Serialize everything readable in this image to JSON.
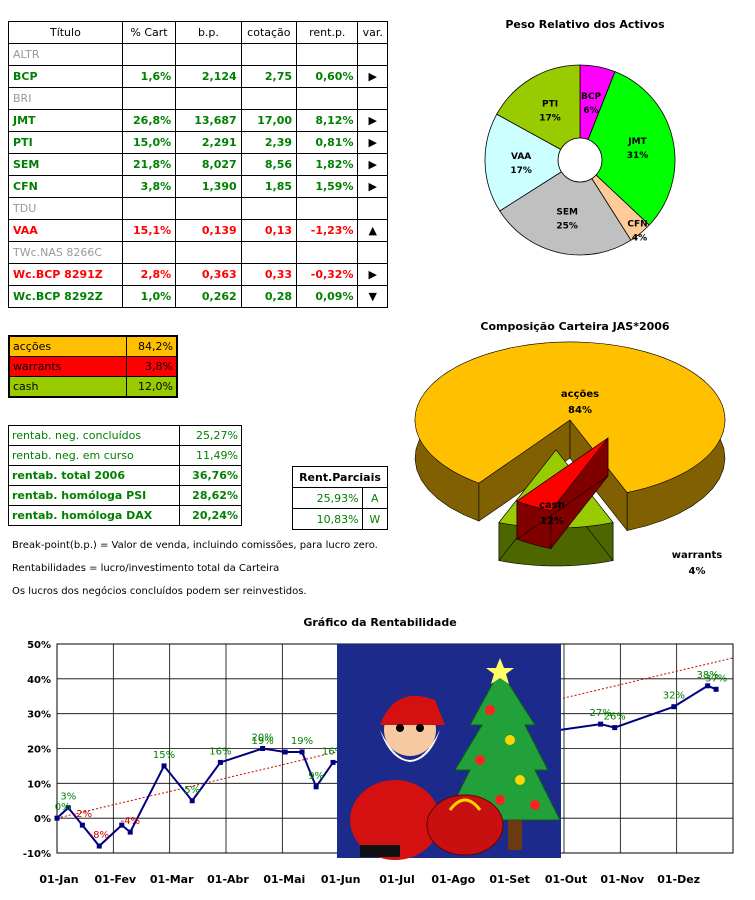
{
  "portfolio_table": {
    "headers": [
      "Título",
      "% Cart",
      "b.p.",
      "cotação",
      "rent.p.",
      "var."
    ],
    "rows": [
      {
        "name": "ALTR",
        "empty": true
      },
      {
        "name": "BCP",
        "cart": "1,6%",
        "bp": "2,124",
        "cot": "2,75",
        "rent": "0,60%",
        "var": "right",
        "color": "green"
      },
      {
        "name": "BRI",
        "empty": true
      },
      {
        "name": "JMT",
        "cart": "26,8%",
        "bp": "13,687",
        "cot": "17,00",
        "rent": "8,12%",
        "var": "right",
        "color": "green"
      },
      {
        "name": "PTI",
        "cart": "15,0%",
        "bp": "2,291",
        "cot": "2,39",
        "rent": "0,81%",
        "var": "right",
        "color": "green"
      },
      {
        "name": "SEM",
        "cart": "21,8%",
        "bp": "8,027",
        "cot": "8,56",
        "rent": "1,82%",
        "var": "right",
        "color": "green"
      },
      {
        "name": "CFN",
        "cart": "3,8%",
        "bp": "1,390",
        "cot": "1,85",
        "rent": "1,59%",
        "var": "right",
        "color": "green"
      },
      {
        "name": "TDU",
        "empty": true
      },
      {
        "name": "VAA",
        "cart": "15,1%",
        "bp": "0,139",
        "cot": "0,13",
        "rent": "-1,23%",
        "var": "up",
        "color": "red"
      },
      {
        "name": "TWc.NAS 8266C",
        "empty": true
      },
      {
        "name": "Wc.BCP 8291Z",
        "cart": "2,8%",
        "bp": "0,363",
        "cot": "0,33",
        "rent": "-0,32%",
        "var": "right",
        "color": "red"
      },
      {
        "name": "Wc.BCP 8292Z",
        "cart": "1,0%",
        "bp": "0,262",
        "cot": "0,28",
        "rent": "0,09%",
        "var": "down",
        "color": "green"
      }
    ]
  },
  "allocation": [
    {
      "label": "acções",
      "value": "84,2%",
      "color": "#ffc000"
    },
    {
      "label": "warrants",
      "value": "3,8%",
      "color": "#ff0000"
    },
    {
      "label": "cash",
      "value": "12,0%",
      "color": "#99cc00"
    }
  ],
  "returns": [
    {
      "label": "rentab. neg. concluídos",
      "value": "25,27%",
      "bold": false
    },
    {
      "label": "rentab. neg. em curso",
      "value": "11,49%",
      "bold": false
    },
    {
      "label": "rentab. total 2006",
      "value": "36,76%",
      "bold": true
    },
    {
      "label": "rentab. homóloga PSI",
      "value": "28,62%",
      "bold": true
    },
    {
      "label": "rentab. homóloga DAX",
      "value": "20,24%",
      "bold": true
    }
  ],
  "partial": {
    "header": "Rent.Parciais",
    "rows": [
      {
        "value": "25,93%",
        "tag": "A"
      },
      {
        "value": "10,83%",
        "tag": "W"
      }
    ]
  },
  "notes": [
    "Break-point(b.p.) = Valor de venda, incluindo comissões, para lucro zero.",
    "Rentabilidades = lucro/investimento total da Carteira",
    "Os lucros dos negócios concluídos podem ser reinvestidos."
  ],
  "chart_data": [
    {
      "type": "pie",
      "title": "Peso Relativo dos Activos",
      "style": "doughnut",
      "slices": [
        {
          "label": "BCP",
          "percent_label": "6%",
          "value": 6,
          "color": "#ff00ff"
        },
        {
          "label": "JMT",
          "percent_label": "31%",
          "value": 31,
          "color": "#00ff00"
        },
        {
          "label": "CFN",
          "percent_label": "4%",
          "value": 4,
          "color": "#ffcc99"
        },
        {
          "label": "SEM",
          "percent_label": "25%",
          "value": 25,
          "color": "#c0c0c0"
        },
        {
          "label": "VAA",
          "percent_label": "17%",
          "value": 17,
          "color": "#ccffff"
        },
        {
          "label": "PTI",
          "percent_label": "17%",
          "value": 17,
          "color": "#99cc00"
        }
      ]
    },
    {
      "type": "pie",
      "title": "Composição Carteira JAS*2006",
      "style": "3d",
      "slices": [
        {
          "label": "acções",
          "percent_label": "84%",
          "value": 84,
          "color": "#ffc000"
        },
        {
          "label": "warrants",
          "percent_label": "4%",
          "value": 4,
          "color": "#ff0000"
        },
        {
          "label": "cash",
          "percent_label": "12%",
          "value": 12,
          "color": "#99cc00"
        }
      ]
    },
    {
      "type": "line",
      "title": "Gráfico da Rentabilidade",
      "xlabels": [
        "01-Jan",
        "01-Fev",
        "01-Mar",
        "01-Abr",
        "01-Mai",
        "01-Jun",
        "01-Jul",
        "01-Ago",
        "01-Set",
        "01-Out",
        "01-Nov",
        "01-Dez"
      ],
      "ylabels": [
        "50%",
        "40%",
        "30%",
        "20%",
        "10%",
        "0%",
        "-10%"
      ],
      "ylim": [
        -10,
        50
      ],
      "x_month_range": [
        0,
        12
      ],
      "series": [
        {
          "name": "Rentabilidade",
          "points": [
            [
              0,
              0
            ],
            [
              0.2,
              3
            ],
            [
              0.45,
              -2
            ],
            [
              0.75,
              -8
            ],
            [
              1.15,
              -2
            ],
            [
              1.3,
              -4
            ],
            [
              1.9,
              15
            ],
            [
              2.4,
              5
            ],
            [
              2.9,
              16
            ],
            [
              3.65,
              20
            ],
            [
              4.05,
              19
            ],
            [
              4.35,
              19
            ],
            [
              4.6,
              9
            ],
            [
              4.9,
              16
            ],
            [
              9.65,
              27
            ],
            [
              9.9,
              26
            ],
            [
              10.95,
              32
            ],
            [
              11.55,
              38
            ],
            [
              11.7,
              37
            ]
          ],
          "labels": [
            {
              "x": 0.2,
              "y": 3,
              "text": "3%"
            },
            {
              "x": 0.1,
              "y": 0,
              "text": "0%"
            },
            {
              "x": 0.45,
              "y": -2,
              "text": "-2%"
            },
            {
              "x": 0.75,
              "y": -8,
              "text": "-8%"
            },
            {
              "x": 1.3,
              "y": -4,
              "text": "-4%"
            },
            {
              "x": 1.9,
              "y": 15,
              "text": "15%"
            },
            {
              "x": 2.4,
              "y": 5,
              "text": "5%"
            },
            {
              "x": 2.9,
              "y": 16,
              "text": "16%"
            },
            {
              "x": 3.65,
              "y": 20,
              "text": "20%"
            },
            {
              "x": 3.65,
              "y": 19,
              "text": "19%"
            },
            {
              "x": 4.35,
              "y": 19,
              "text": "19%"
            },
            {
              "x": 4.6,
              "y": 9,
              "text": "9%"
            },
            {
              "x": 4.9,
              "y": 16,
              "text": "16%"
            },
            {
              "x": 9.65,
              "y": 27,
              "text": "27%"
            },
            {
              "x": 9.9,
              "y": 26,
              "text": "26%"
            },
            {
              "x": 10.95,
              "y": 32,
              "text": "32%"
            },
            {
              "x": 11.55,
              "y": 38,
              "text": "38%"
            },
            {
              "x": 11.7,
              "y": 37,
              "text": "37%"
            }
          ]
        }
      ],
      "trendline": {
        "start": [
          0,
          0
        ],
        "end": [
          12,
          46
        ]
      }
    }
  ]
}
